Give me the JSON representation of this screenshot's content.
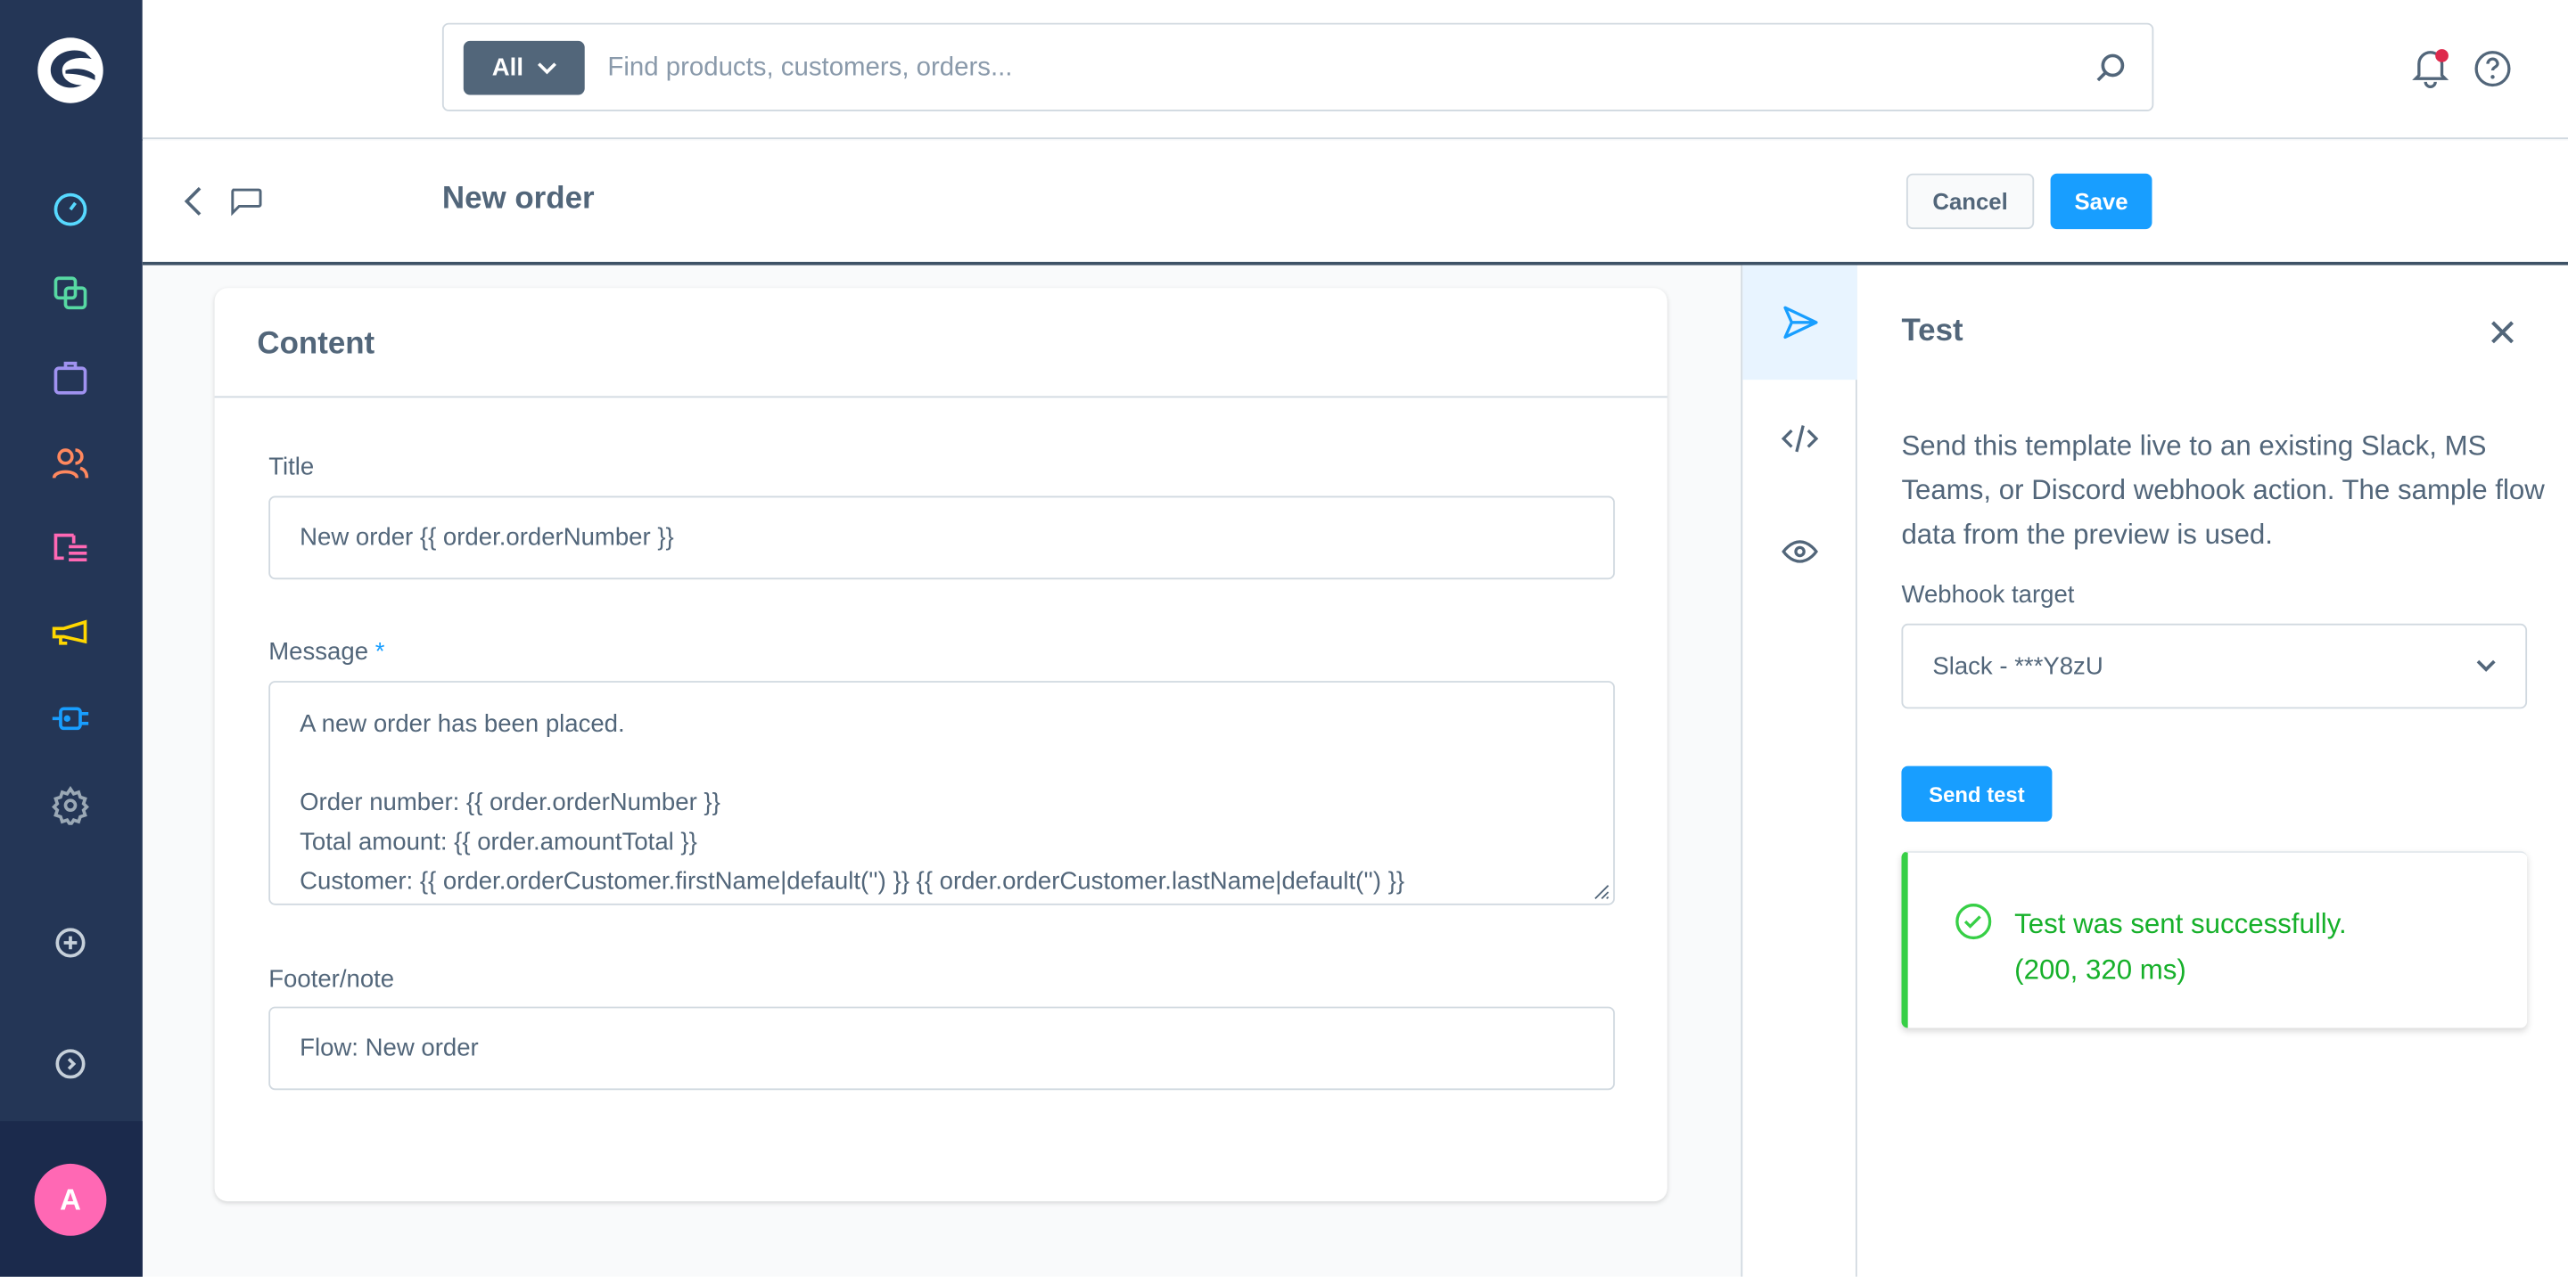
{
  "sidebar": {
    "items": [
      {
        "icon": "dashboard-icon",
        "color": "#57d9ff"
      },
      {
        "icon": "catalog-icon",
        "color": "#57d9a3"
      },
      {
        "icon": "orders-icon",
        "color": "#a092f0"
      },
      {
        "icon": "customers-icon",
        "color": "#ff885e"
      },
      {
        "icon": "content-icon",
        "color": "#ff68b4"
      },
      {
        "icon": "marketing-icon",
        "color": "#ffd700"
      },
      {
        "icon": "extensions-icon",
        "color": "#189eff"
      },
      {
        "icon": "settings-icon",
        "color": "#9aa8b5"
      }
    ],
    "avatar_initial": "A"
  },
  "search": {
    "scope": "All",
    "placeholder": "Find products, customers, orders..."
  },
  "header": {
    "title": "New order",
    "cancel": "Cancel",
    "save": "Save"
  },
  "content": {
    "heading": "Content",
    "title_label": "Title",
    "title_value": "New order {{ order.orderNumber }}",
    "message_label": "Message",
    "required_mark": "*",
    "message_value": "A new order has been placed.\n\nOrder number: {{ order.orderNumber }}\nTotal amount: {{ order.amountTotal }}\nCustomer: {{ order.orderCustomer.firstName|default('') }} {{ order.orderCustomer.lastName|default('') }}",
    "footer_label": "Footer/note",
    "footer_value": "Flow: New order"
  },
  "test_panel": {
    "title": "Test",
    "description": "Send this template live to an existing Slack, MS Teams, or Discord webhook action. The sample flow data from the preview is used.",
    "webhook_label": "Webhook target",
    "webhook_value": "Slack - ***Y8zU",
    "send_button": "Send test",
    "success_line1": "Test was sent successfully.",
    "success_line2": "(200, 320 ms)"
  },
  "colors": {
    "primary": "#189eff",
    "success": "#16b02a",
    "sidebar": "#243656"
  }
}
